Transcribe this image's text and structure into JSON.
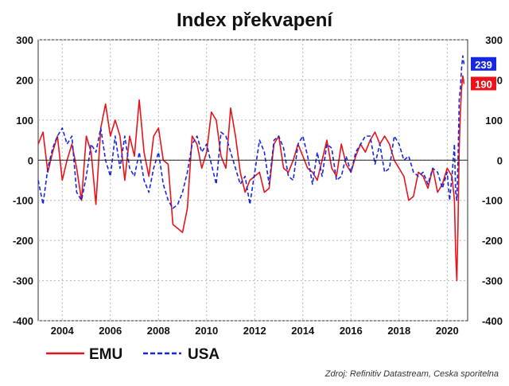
{
  "chart_data": {
    "type": "line",
    "title": "Index překvapení",
    "source": "Zdroj: Refinitiv Datastream, Ceska sporitelna",
    "xlim": [
      2003.0,
      2020.85
    ],
    "ylim": [
      -400,
      300
    ],
    "yticks": [
      300,
      200,
      100,
      0,
      -100,
      -200,
      -300,
      -400
    ],
    "yticks_right": [
      300,
      200,
      100,
      0,
      -100,
      -200,
      -300,
      -400
    ],
    "xticks": [
      2004,
      2006,
      2008,
      2010,
      2012,
      2014,
      2016,
      2018,
      2020
    ],
    "grid": true,
    "legend_position": "bottom-left",
    "series": [
      {
        "name": "EMU",
        "color": "#e8141b",
        "style": "solid",
        "end_value": 190,
        "x": [
          2003.0,
          2003.2,
          2003.4,
          2003.6,
          2003.8,
          2004.0,
          2004.2,
          2004.4,
          2004.6,
          2004.8,
          2005.0,
          2005.2,
          2005.4,
          2005.6,
          2005.8,
          2006.0,
          2006.2,
          2006.4,
          2006.6,
          2006.8,
          2007.0,
          2007.2,
          2007.4,
          2007.6,
          2007.8,
          2008.0,
          2008.2,
          2008.4,
          2008.6,
          2008.8,
          2009.0,
          2009.2,
          2009.4,
          2009.6,
          2009.8,
          2010.0,
          2010.2,
          2010.4,
          2010.6,
          2010.8,
          2011.0,
          2011.2,
          2011.4,
          2011.6,
          2011.8,
          2012.0,
          2012.2,
          2012.4,
          2012.6,
          2012.8,
          2013.0,
          2013.2,
          2013.4,
          2013.6,
          2013.8,
          2014.0,
          2014.2,
          2014.4,
          2014.6,
          2014.8,
          2015.0,
          2015.2,
          2015.4,
          2015.6,
          2015.8,
          2016.0,
          2016.2,
          2016.4,
          2016.6,
          2016.8,
          2017.0,
          2017.2,
          2017.4,
          2017.6,
          2017.8,
          2018.0,
          2018.2,
          2018.4,
          2018.6,
          2018.8,
          2019.0,
          2019.2,
          2019.4,
          2019.6,
          2019.8,
          2020.0,
          2020.1,
          2020.2,
          2020.3,
          2020.35,
          2020.4,
          2020.45,
          2020.5,
          2020.55,
          2020.6,
          2020.65,
          2020.7
        ],
        "values": [
          40,
          70,
          -30,
          20,
          60,
          -50,
          0,
          40,
          -20,
          -100,
          60,
          20,
          -110,
          80,
          140,
          60,
          100,
          60,
          -50,
          60,
          10,
          150,
          20,
          -40,
          60,
          80,
          0,
          -10,
          -160,
          -170,
          -180,
          -120,
          60,
          40,
          -20,
          20,
          120,
          100,
          10,
          -20,
          130,
          60,
          -30,
          -80,
          -50,
          -40,
          -30,
          -80,
          -70,
          40,
          60,
          -20,
          -30,
          0,
          40,
          10,
          -20,
          -30,
          -50,
          0,
          50,
          -20,
          -40,
          40,
          -10,
          -30,
          10,
          40,
          20,
          50,
          70,
          40,
          60,
          40,
          0,
          -20,
          -40,
          -100,
          -90,
          -30,
          -40,
          -70,
          -20,
          -80,
          -60,
          -20,
          -30,
          -40,
          -100,
          -230,
          -300,
          -160,
          30,
          120,
          180,
          210,
          190
        ]
      },
      {
        "name": "USA",
        "color": "#1727e0",
        "style": "dashed",
        "end_value": 239,
        "x": [
          2003.0,
          2003.2,
          2003.4,
          2003.6,
          2003.8,
          2004.0,
          2004.2,
          2004.4,
          2004.6,
          2004.8,
          2005.0,
          2005.2,
          2005.4,
          2005.6,
          2005.8,
          2006.0,
          2006.2,
          2006.4,
          2006.6,
          2006.8,
          2007.0,
          2007.2,
          2007.4,
          2007.6,
          2007.8,
          2008.0,
          2008.2,
          2008.4,
          2008.6,
          2008.8,
          2009.0,
          2009.2,
          2009.4,
          2009.6,
          2009.8,
          2010.0,
          2010.2,
          2010.4,
          2010.6,
          2010.8,
          2011.0,
          2011.2,
          2011.4,
          2011.6,
          2011.8,
          2012.0,
          2012.2,
          2012.4,
          2012.6,
          2012.8,
          2013.0,
          2013.2,
          2013.4,
          2013.6,
          2013.8,
          2014.0,
          2014.2,
          2014.4,
          2014.6,
          2014.8,
          2015.0,
          2015.2,
          2015.4,
          2015.6,
          2015.8,
          2016.0,
          2016.2,
          2016.4,
          2016.6,
          2016.8,
          2017.0,
          2017.2,
          2017.4,
          2017.6,
          2017.8,
          2018.0,
          2018.2,
          2018.4,
          2018.6,
          2018.8,
          2019.0,
          2019.2,
          2019.4,
          2019.6,
          2019.8,
          2020.0,
          2020.1,
          2020.2,
          2020.3,
          2020.35,
          2020.4,
          2020.45,
          2020.5,
          2020.55,
          2020.6,
          2020.65,
          2020.7
        ],
        "values": [
          -50,
          -110,
          -20,
          30,
          60,
          80,
          40,
          60,
          -80,
          -100,
          -40,
          40,
          20,
          80,
          0,
          -40,
          60,
          -20,
          60,
          -20,
          -40,
          20,
          -50,
          -80,
          -20,
          20,
          -60,
          -100,
          -120,
          -110,
          -80,
          -30,
          40,
          60,
          20,
          40,
          -10,
          -60,
          70,
          60,
          20,
          -20,
          -60,
          -40,
          -110,
          -30,
          50,
          20,
          -60,
          50,
          60,
          30,
          -40,
          -50,
          40,
          60,
          10,
          -60,
          20,
          -40,
          40,
          30,
          -50,
          -40,
          10,
          -30,
          20,
          40,
          60,
          60,
          -10,
          40,
          -30,
          -20,
          60,
          40,
          0,
          10,
          -30,
          -40,
          -30,
          -60,
          -20,
          -30,
          -70,
          -30,
          -100,
          -40,
          40,
          -80,
          -100,
          0,
          150,
          180,
          230,
          260,
          239
        ]
      }
    ]
  }
}
